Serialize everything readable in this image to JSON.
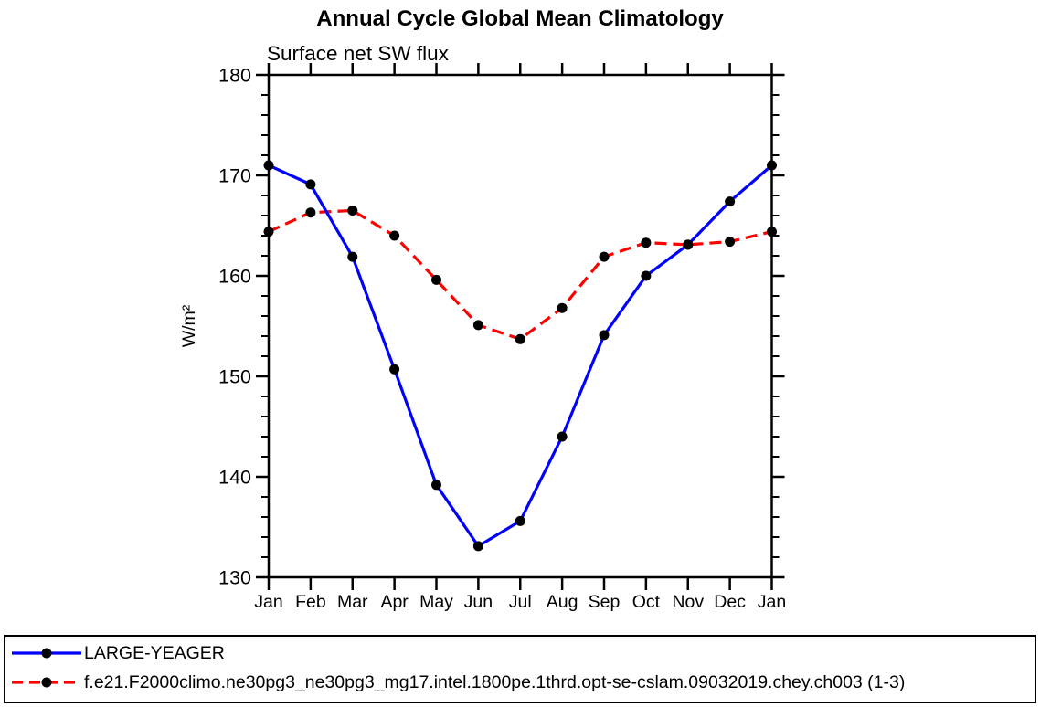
{
  "figure": {
    "title": "Annual Cycle Global Mean Climatology",
    "subtitle": "Surface net SW flux"
  },
  "chart_data": {
    "type": "line",
    "title": "Annual Cycle Global Mean Climatology",
    "subtitle": "Surface net SW flux",
    "xlabel": "",
    "ylabel": "W/m²",
    "categories": [
      "Jan",
      "Feb",
      "Mar",
      "Apr",
      "May",
      "Jun",
      "Jul",
      "Aug",
      "Sep",
      "Oct",
      "Nov",
      "Dec",
      "Jan"
    ],
    "ylim": [
      130,
      180
    ],
    "y_major_ticks": [
      130,
      140,
      150,
      160,
      170,
      180
    ],
    "y_minor_step": 2,
    "grid": false,
    "axis_color": "#000000",
    "legend_position": "bottom-left-box",
    "series": [
      {
        "name": "LARGE-YEAGER",
        "color": "#0000ff",
        "line_style": "solid",
        "marker": "filled-circle",
        "marker_color": "#000000",
        "values": [
          171.0,
          169.1,
          161.9,
          150.7,
          139.2,
          133.1,
          135.6,
          144.0,
          154.1,
          160.0,
          163.1,
          167.4,
          171.0
        ]
      },
      {
        "name": "f.e21.F2000climo.ne30pg3_ne30pg3_mg17.intel.1800pe.1thrd.opt-se-cslam.09032019.chey.ch003 (1-3)",
        "color": "#ff0000",
        "line_style": "dashed",
        "marker": "filled-circle",
        "marker_color": "#000000",
        "values": [
          164.4,
          166.3,
          166.5,
          164.0,
          159.6,
          155.1,
          153.7,
          156.8,
          161.9,
          163.3,
          163.1,
          163.4,
          164.4
        ]
      }
    ]
  },
  "legend": {
    "entries": [
      {
        "label": "LARGE-YEAGER",
        "color": "#0000ff",
        "style": "solid"
      },
      {
        "label": "f.e21.F2000climo.ne30pg3_ne30pg3_mg17.intel.1800pe.1thrd.opt-se-cslam.09032019.chey.ch003 (1-3)",
        "color": "#ff0000",
        "style": "dashed"
      }
    ]
  }
}
